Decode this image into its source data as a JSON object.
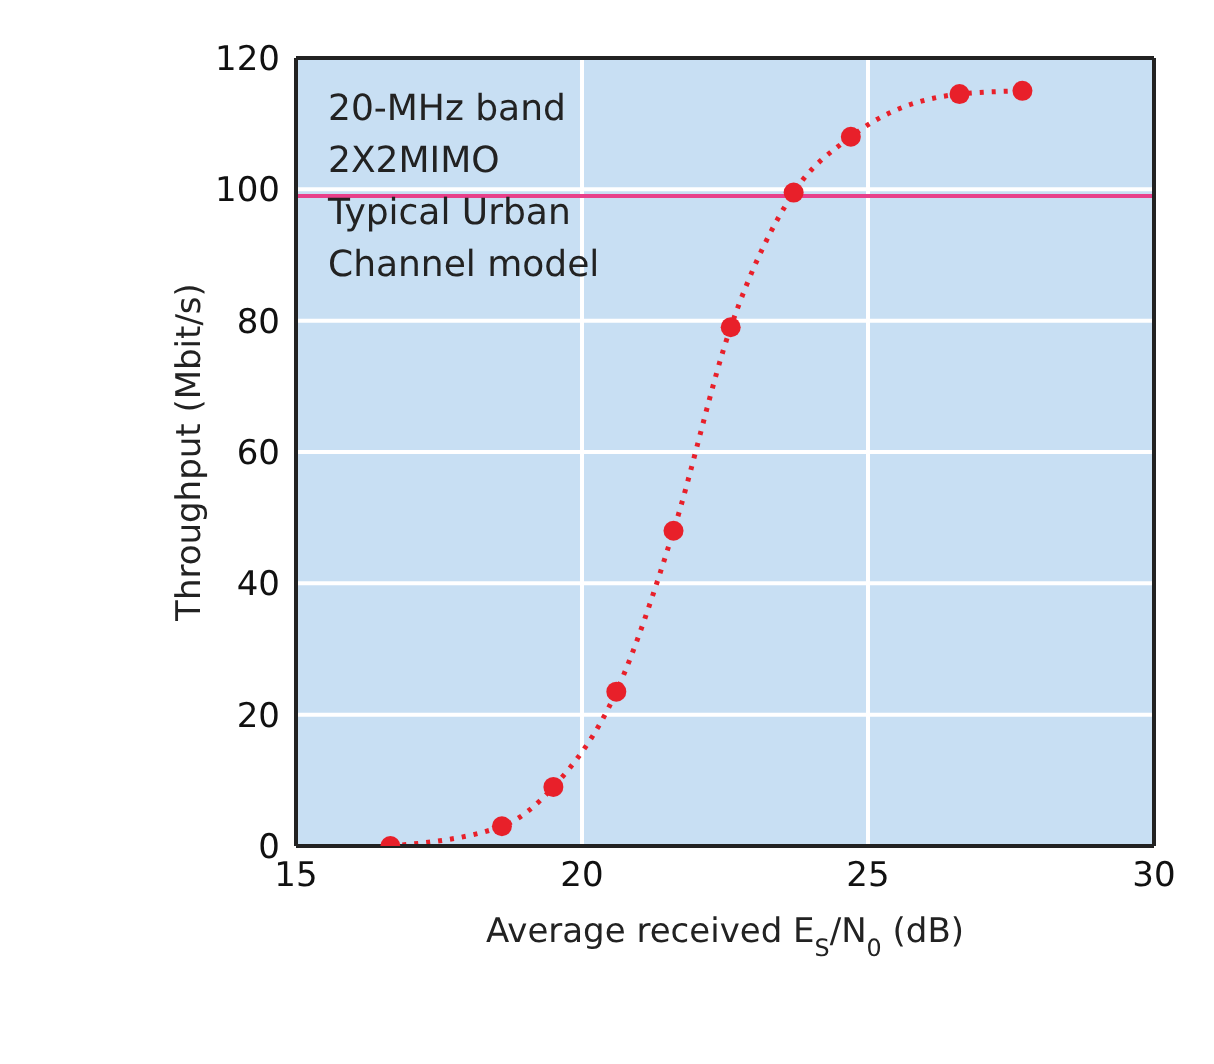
{
  "chart_data": {
    "type": "line",
    "xlabel": "Average received E$_{S}$/N$_{0}$ (dB)",
    "ylabel": "Throughput (Mbit/s)",
    "annotations": [
      "20-MHz band",
      "2X2MIMO",
      "Typical Urban",
      "Channel model"
    ],
    "x": [
      16.65,
      18.6,
      19.5,
      20.6,
      21.6,
      22.6,
      23.7,
      24.7,
      26.6,
      27.7
    ],
    "series": [
      {
        "color": "#e8202a",
        "values": [
          0,
          3,
          9,
          23.5,
          48,
          79,
          99.5,
          108,
          114.5,
          115
        ]
      }
    ],
    "xlim": [
      15,
      30
    ],
    "xticks": [
      15,
      20,
      25,
      30
    ],
    "ylim": [
      0,
      120
    ],
    "yticks": [
      0,
      20,
      40,
      60,
      80,
      100,
      120
    ],
    "ref_lines": [
      {
        "axis": "y",
        "value": 99,
        "color": "#e8408a"
      }
    ],
    "grid": true,
    "marker": "circle",
    "line_style": "dotted",
    "legend": false
  }
}
